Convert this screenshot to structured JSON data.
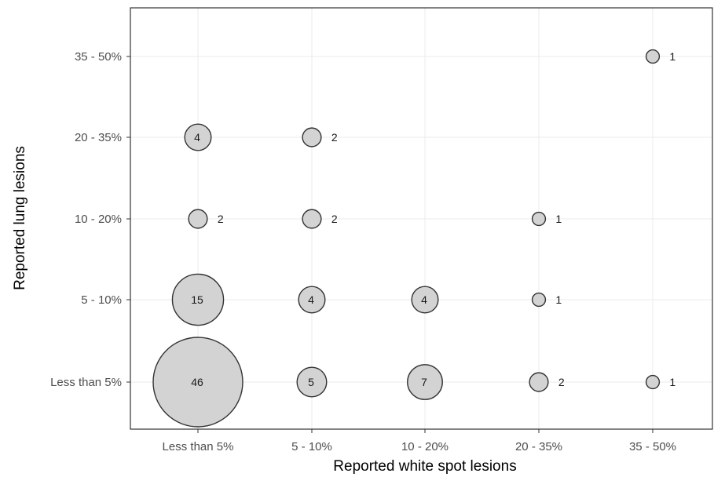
{
  "chart_data": {
    "type": "scatter",
    "title": "",
    "xlabel": "Reported white spot lesions",
    "ylabel": "Reported lung lesions",
    "x_categories": [
      "Less than 5%",
      "5 - 10%",
      "10 - 20%",
      "20 - 35%",
      "35 - 50%"
    ],
    "y_categories": [
      "Less than 5%",
      "5 - 10%",
      "10 - 20%",
      "20 - 35%",
      "35 - 50%"
    ],
    "points": [
      {
        "x": "Less than 5%",
        "y": "Less than 5%",
        "count": 46,
        "label": "46",
        "label_pos": "inside"
      },
      {
        "x": "5 - 10%",
        "y": "Less than 5%",
        "count": 5,
        "label": "5",
        "label_pos": "inside"
      },
      {
        "x": "10 - 20%",
        "y": "Less than 5%",
        "count": 7,
        "label": "7",
        "label_pos": "inside"
      },
      {
        "x": "20 - 35%",
        "y": "Less than 5%",
        "count": 2,
        "label": "2",
        "label_pos": "right"
      },
      {
        "x": "35 - 50%",
        "y": "Less than 5%",
        "count": 1,
        "label": "1",
        "label_pos": "right"
      },
      {
        "x": "Less than 5%",
        "y": "5 - 10%",
        "count": 15,
        "label": "15",
        "label_pos": "inside"
      },
      {
        "x": "5 - 10%",
        "y": "5 - 10%",
        "count": 4,
        "label": "4",
        "label_pos": "inside"
      },
      {
        "x": "10 - 20%",
        "y": "5 - 10%",
        "count": 4,
        "label": "4",
        "label_pos": "inside"
      },
      {
        "x": "20 - 35%",
        "y": "5 - 10%",
        "count": 1,
        "label": "1",
        "label_pos": "right"
      },
      {
        "x": "Less than 5%",
        "y": "10 - 20%",
        "count": 2,
        "label": "2",
        "label_pos": "right"
      },
      {
        "x": "5 - 10%",
        "y": "10 - 20%",
        "count": 2,
        "label": "2",
        "label_pos": "right"
      },
      {
        "x": "20 - 35%",
        "y": "10 - 20%",
        "count": 1,
        "label": "1",
        "label_pos": "right"
      },
      {
        "x": "Less than 5%",
        "y": "20 - 35%",
        "count": 4,
        "label": "4",
        "label_pos": "inside"
      },
      {
        "x": "5 - 10%",
        "y": "20 - 35%",
        "count": 2,
        "label": "2",
        "label_pos": "right"
      },
      {
        "x": "35 - 50%",
        "y": "35 - 50%",
        "count": 1,
        "label": "1",
        "label_pos": "right"
      }
    ],
    "grid": true,
    "legend": "none",
    "colors": {
      "bubble_fill": "#d3d3d3",
      "bubble_stroke": "#333333",
      "grid": "#ebebeb",
      "panel_border": "#333333"
    }
  }
}
